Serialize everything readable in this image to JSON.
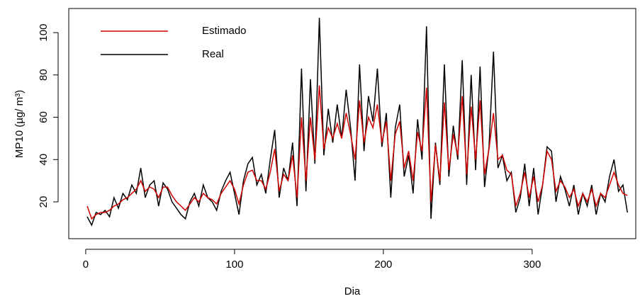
{
  "chart_data": {
    "type": "line",
    "xlabel": "Dia",
    "ylabel": "MP10 (µg/ m³)",
    "x": [
      1,
      4,
      7,
      10,
      13,
      16,
      19,
      22,
      25,
      28,
      31,
      34,
      37,
      40,
      43,
      46,
      49,
      52,
      55,
      58,
      61,
      64,
      67,
      70,
      73,
      76,
      79,
      82,
      85,
      88,
      91,
      94,
      97,
      100,
      103,
      106,
      109,
      112,
      115,
      118,
      121,
      124,
      127,
      130,
      133,
      136,
      139,
      142,
      145,
      148,
      151,
      154,
      157,
      160,
      163,
      166,
      169,
      172,
      175,
      178,
      181,
      184,
      187,
      190,
      193,
      196,
      199,
      202,
      205,
      208,
      211,
      214,
      217,
      220,
      223,
      226,
      229,
      232,
      235,
      238,
      241,
      244,
      247,
      250,
      253,
      256,
      259,
      262,
      265,
      268,
      271,
      274,
      277,
      280,
      283,
      286,
      289,
      292,
      295,
      298,
      301,
      304,
      307,
      310,
      313,
      316,
      319,
      322,
      325,
      328,
      331,
      334,
      337,
      340,
      343,
      346,
      349,
      352,
      355,
      358,
      361,
      364
    ],
    "series": [
      {
        "name": "Estimado",
        "color": "#d00000",
        "values": [
          18,
          12,
          14,
          15,
          15,
          16,
          18,
          19,
          21,
          22,
          24,
          26,
          30,
          25,
          27,
          26,
          22,
          27,
          27,
          23,
          20,
          18,
          16,
          19,
          22,
          20,
          24,
          22,
          21,
          19,
          24,
          27,
          30,
          26,
          19,
          28,
          34,
          35,
          30,
          30,
          26,
          34,
          45,
          25,
          33,
          30,
          42,
          22,
          60,
          30,
          60,
          40,
          75,
          45,
          55,
          50,
          57,
          50,
          62,
          52,
          40,
          68,
          48,
          60,
          55,
          66,
          48,
          58,
          30,
          52,
          58,
          36,
          44,
          30,
          53,
          44,
          74,
          20,
          47,
          30,
          67,
          35,
          52,
          42,
          70,
          33,
          65,
          40,
          68,
          33,
          45,
          62,
          40,
          42,
          35,
          33,
          18,
          24,
          34,
          22,
          32,
          20,
          28,
          44,
          40,
          25,
          30,
          27,
          22,
          26,
          18,
          24,
          20,
          26,
          18,
          24,
          22,
          28,
          34,
          28,
          24,
          23
        ]
      },
      {
        "name": "Real",
        "color": "#000000",
        "values": [
          13,
          9,
          15,
          14,
          16,
          13,
          22,
          17,
          24,
          21,
          28,
          24,
          36,
          22,
          28,
          30,
          18,
          29,
          26,
          20,
          17,
          14,
          12,
          20,
          24,
          18,
          28,
          22,
          20,
          16,
          25,
          30,
          34,
          24,
          14,
          30,
          38,
          41,
          28,
          33,
          24,
          40,
          54,
          22,
          36,
          30,
          48,
          18,
          83,
          25,
          78,
          38,
          107,
          42,
          64,
          48,
          66,
          50,
          73,
          55,
          30,
          85,
          44,
          70,
          58,
          83,
          46,
          62,
          22,
          55,
          66,
          32,
          42,
          24,
          59,
          40,
          103,
          12,
          48,
          28,
          85,
          32,
          56,
          40,
          87,
          28,
          80,
          35,
          84,
          27,
          46,
          91,
          36,
          42,
          30,
          34,
          15,
          22,
          38,
          18,
          36,
          14,
          28,
          46,
          44,
          20,
          32,
          26,
          18,
          28,
          14,
          24,
          18,
          28,
          14,
          24,
          20,
          32,
          40,
          25,
          28,
          15
        ]
      }
    ],
    "xlim": [
      -11.4,
      369.6
    ],
    "xticks": [
      0,
      100,
      200,
      300
    ],
    "ylim": [
      2.6,
      111.4
    ],
    "yticks": [
      20,
      40,
      60,
      80,
      100
    ],
    "legend": "topleft"
  }
}
